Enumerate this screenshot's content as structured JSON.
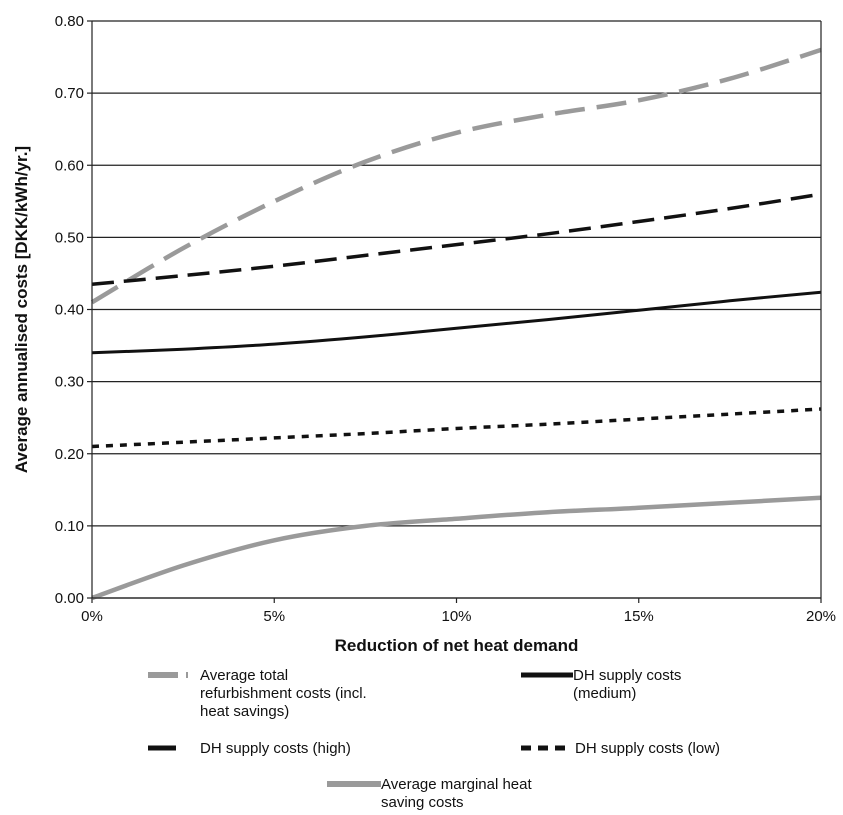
{
  "chart_data": {
    "type": "line",
    "title": "",
    "xlabel": "Reduction of net heat demand",
    "ylabel": "Average annualised costs [DKK/kWh/yr.]",
    "xlim": [
      0,
      20
    ],
    "ylim": [
      0,
      0.8
    ],
    "x_ticks": [
      0,
      5,
      10,
      15,
      20
    ],
    "x_tick_labels": [
      "0%",
      "5%",
      "10%",
      "15%",
      "20%"
    ],
    "y_ticks": [
      0,
      0.1,
      0.2,
      0.3,
      0.4,
      0.5,
      0.6,
      0.7,
      0.8
    ],
    "y_tick_labels": [
      "0.00",
      "0.10",
      "0.20",
      "0.30",
      "0.40",
      "0.50",
      "0.60",
      "0.70",
      "0.80"
    ],
    "grid": "horizontal",
    "legend_position": "bottom",
    "series": [
      {
        "name": "Average total refurbishment costs (incl. heat savings)",
        "color": "#9a9a9a",
        "style": "dashed-thick",
        "x": [
          0,
          2.5,
          5,
          7.5,
          10,
          12.5,
          15,
          17.5,
          20
        ],
        "y": [
          0.41,
          0.485,
          0.55,
          0.605,
          0.645,
          0.67,
          0.69,
          0.72,
          0.76
        ]
      },
      {
        "name": "DH supply costs (medium)",
        "color": "#111111",
        "style": "solid",
        "x": [
          0,
          2.5,
          5,
          7.5,
          10,
          12.5,
          15,
          17.5,
          20
        ],
        "y": [
          0.34,
          0.345,
          0.352,
          0.362,
          0.374,
          0.386,
          0.399,
          0.412,
          0.424
        ]
      },
      {
        "name": "DH supply costs (high)",
        "color": "#111111",
        "style": "dashed",
        "x": [
          0,
          2.5,
          5,
          7.5,
          10,
          12.5,
          15,
          17.5,
          20
        ],
        "y": [
          0.435,
          0.447,
          0.46,
          0.475,
          0.49,
          0.505,
          0.522,
          0.54,
          0.56
        ]
      },
      {
        "name": "DH supply costs (low)",
        "color": "#111111",
        "style": "dotted",
        "x": [
          0,
          2.5,
          5,
          7.5,
          10,
          12.5,
          15,
          17.5,
          20
        ],
        "y": [
          0.21,
          0.216,
          0.222,
          0.228,
          0.235,
          0.241,
          0.248,
          0.255,
          0.262
        ]
      },
      {
        "name": "Average marginal heat saving costs",
        "color": "#9a9a9a",
        "style": "solid-thick",
        "x": [
          0,
          2.5,
          5,
          7.5,
          10,
          12.5,
          15,
          17.5,
          20
        ],
        "y": [
          0,
          0.045,
          0.08,
          0.1,
          0.11,
          0.119,
          0.125,
          0.132,
          0.139
        ]
      }
    ]
  },
  "legend": {
    "items": [
      {
        "label": "Average total\nrefurbishment costs (incl.\nheat savings)"
      },
      {
        "label": "DH supply costs\n(medium)"
      },
      {
        "label": "DH supply costs (high)"
      },
      {
        "label": "DH supply costs (low)"
      },
      {
        "label": "Average marginal heat\nsaving costs"
      }
    ]
  }
}
